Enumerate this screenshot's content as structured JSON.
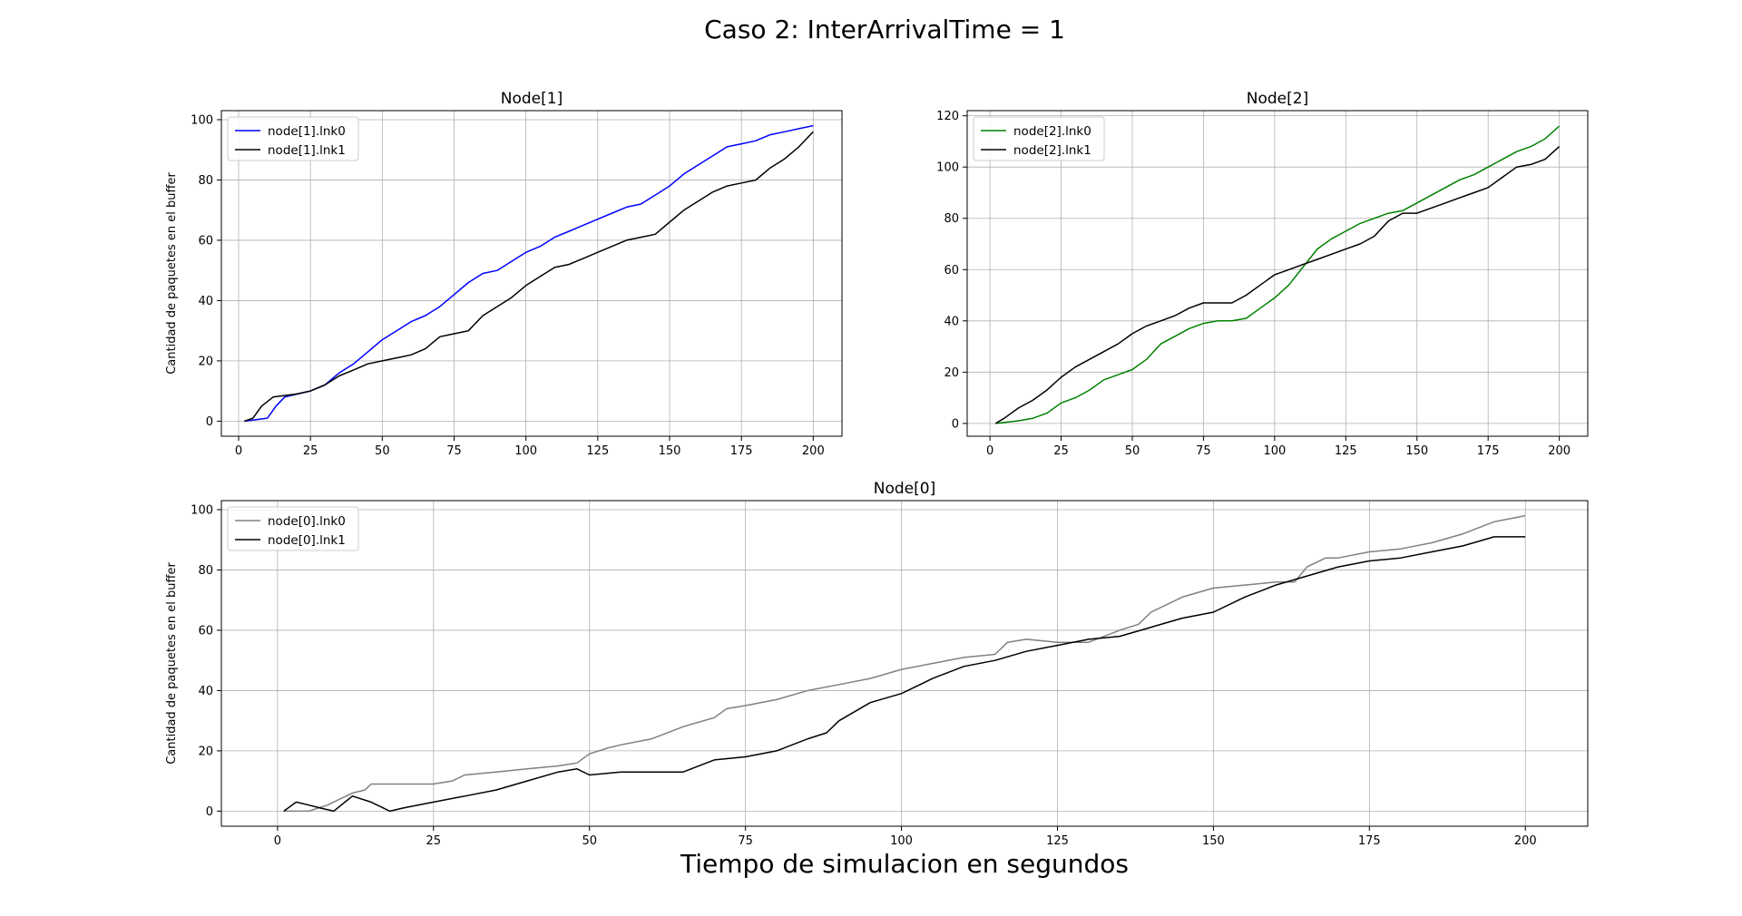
{
  "figure": {
    "suptitle": "Caso 2: InterArrivalTime = 1",
    "supxlabel": "Tiempo de simulacion en segundos"
  },
  "chart_data": [
    {
      "type": "line",
      "title": "Node[1]",
      "ylabel": "Cantidad de paquetes en el buffer",
      "xlim": [
        -6,
        210
      ],
      "ylim": [
        -5,
        103
      ],
      "xticks": [
        0,
        25,
        50,
        75,
        100,
        125,
        150,
        175,
        200
      ],
      "yticks": [
        0,
        20,
        40,
        60,
        80,
        100
      ],
      "grid": true,
      "legend": "upper-left",
      "series": [
        {
          "name": "node[1].lnk0",
          "color": "#0000ff",
          "points": [
            [
              2,
              0
            ],
            [
              10,
              1
            ],
            [
              13,
              5
            ],
            [
              16,
              8
            ],
            [
              25,
              10
            ],
            [
              30,
              12
            ],
            [
              35,
              16
            ],
            [
              40,
              19
            ],
            [
              45,
              23
            ],
            [
              50,
              27
            ],
            [
              55,
              30
            ],
            [
              60,
              33
            ],
            [
              65,
              35
            ],
            [
              70,
              38
            ],
            [
              75,
              42
            ],
            [
              80,
              46
            ],
            [
              85,
              49
            ],
            [
              90,
              50
            ],
            [
              95,
              53
            ],
            [
              100,
              56
            ],
            [
              105,
              58
            ],
            [
              110,
              61
            ],
            [
              115,
              63
            ],
            [
              120,
              65
            ],
            [
              125,
              67
            ],
            [
              130,
              69
            ],
            [
              135,
              71
            ],
            [
              140,
              72
            ],
            [
              145,
              75
            ],
            [
              150,
              78
            ],
            [
              155,
              82
            ],
            [
              160,
              85
            ],
            [
              165,
              88
            ],
            [
              170,
              91
            ],
            [
              175,
              92
            ],
            [
              180,
              93
            ],
            [
              185,
              95
            ],
            [
              190,
              96
            ],
            [
              195,
              97
            ],
            [
              200,
              98
            ]
          ]
        },
        {
          "name": "node[1].lnk1",
          "color": "#000000",
          "points": [
            [
              2,
              0
            ],
            [
              5,
              1
            ],
            [
              8,
              5
            ],
            [
              12,
              8
            ],
            [
              20,
              9
            ],
            [
              25,
              10
            ],
            [
              30,
              12
            ],
            [
              35,
              15
            ],
            [
              40,
              17
            ],
            [
              45,
              19
            ],
            [
              50,
              20
            ],
            [
              55,
              21
            ],
            [
              60,
              22
            ],
            [
              65,
              24
            ],
            [
              70,
              28
            ],
            [
              75,
              29
            ],
            [
              80,
              30
            ],
            [
              85,
              35
            ],
            [
              90,
              38
            ],
            [
              95,
              41
            ],
            [
              100,
              45
            ],
            [
              105,
              48
            ],
            [
              110,
              51
            ],
            [
              115,
              52
            ],
            [
              120,
              54
            ],
            [
              125,
              56
            ],
            [
              130,
              58
            ],
            [
              135,
              60
            ],
            [
              140,
              61
            ],
            [
              145,
              62
            ],
            [
              150,
              66
            ],
            [
              155,
              70
            ],
            [
              160,
              73
            ],
            [
              165,
              76
            ],
            [
              170,
              78
            ],
            [
              175,
              79
            ],
            [
              180,
              80
            ],
            [
              185,
              84
            ],
            [
              190,
              87
            ],
            [
              195,
              91
            ],
            [
              200,
              96
            ]
          ]
        }
      ]
    },
    {
      "type": "line",
      "title": "Node[2]",
      "ylabel": "",
      "xlim": [
        -8,
        210
      ],
      "ylim": [
        -5,
        122
      ],
      "xticks": [
        0,
        25,
        50,
        75,
        100,
        125,
        150,
        175,
        200
      ],
      "yticks": [
        0,
        20,
        40,
        60,
        80,
        100,
        120
      ],
      "grid": true,
      "legend": "upper-left",
      "series": [
        {
          "name": "node[2].lnk0",
          "color": "#008000",
          "points": [
            [
              2,
              0
            ],
            [
              10,
              1
            ],
            [
              15,
              2
            ],
            [
              20,
              4
            ],
            [
              25,
              8
            ],
            [
              30,
              10
            ],
            [
              35,
              13
            ],
            [
              40,
              17
            ],
            [
              45,
              19
            ],
            [
              50,
              21
            ],
            [
              55,
              25
            ],
            [
              60,
              31
            ],
            [
              65,
              34
            ],
            [
              70,
              37
            ],
            [
              75,
              39
            ],
            [
              80,
              40
            ],
            [
              85,
              40
            ],
            [
              90,
              41
            ],
            [
              95,
              45
            ],
            [
              100,
              49
            ],
            [
              105,
              54
            ],
            [
              110,
              61
            ],
            [
              115,
              68
            ],
            [
              120,
              72
            ],
            [
              125,
              75
            ],
            [
              130,
              78
            ],
            [
              135,
              80
            ],
            [
              140,
              82
            ],
            [
              145,
              83
            ],
            [
              150,
              86
            ],
            [
              155,
              89
            ],
            [
              160,
              92
            ],
            [
              165,
              95
            ],
            [
              170,
              97
            ],
            [
              175,
              100
            ],
            [
              180,
              103
            ],
            [
              185,
              106
            ],
            [
              190,
              108
            ],
            [
              195,
              111
            ],
            [
              200,
              116
            ]
          ]
        },
        {
          "name": "node[2].lnk1",
          "color": "#000000",
          "points": [
            [
              2,
              0
            ],
            [
              5,
              2
            ],
            [
              10,
              6
            ],
            [
              15,
              9
            ],
            [
              20,
              13
            ],
            [
              25,
              18
            ],
            [
              30,
              22
            ],
            [
              35,
              25
            ],
            [
              40,
              28
            ],
            [
              45,
              31
            ],
            [
              50,
              35
            ],
            [
              55,
              38
            ],
            [
              60,
              40
            ],
            [
              65,
              42
            ],
            [
              70,
              45
            ],
            [
              75,
              47
            ],
            [
              80,
              47
            ],
            [
              85,
              47
            ],
            [
              90,
              50
            ],
            [
              95,
              54
            ],
            [
              100,
              58
            ],
            [
              105,
              60
            ],
            [
              110,
              62
            ],
            [
              115,
              64
            ],
            [
              120,
              66
            ],
            [
              125,
              68
            ],
            [
              130,
              70
            ],
            [
              135,
              73
            ],
            [
              140,
              79
            ],
            [
              145,
              82
            ],
            [
              150,
              82
            ],
            [
              155,
              84
            ],
            [
              160,
              86
            ],
            [
              165,
              88
            ],
            [
              170,
              90
            ],
            [
              175,
              92
            ],
            [
              180,
              96
            ],
            [
              185,
              100
            ],
            [
              190,
              101
            ],
            [
              195,
              103
            ],
            [
              200,
              108
            ]
          ]
        }
      ]
    },
    {
      "type": "line",
      "title": "Node[0]",
      "ylabel": "Cantidad de paquetes en el buffer",
      "xlim": [
        -9,
        210
      ],
      "ylim": [
        -5,
        103
      ],
      "xticks": [
        0,
        25,
        50,
        75,
        100,
        125,
        150,
        175,
        200
      ],
      "yticks": [
        0,
        20,
        40,
        60,
        80,
        100
      ],
      "grid": true,
      "legend": "upper-left",
      "series": [
        {
          "name": "node[0].lnk0",
          "color": "#808080",
          "points": [
            [
              1,
              0
            ],
            [
              5,
              0
            ],
            [
              8,
              2
            ],
            [
              10,
              4
            ],
            [
              12,
              6
            ],
            [
              14,
              7
            ],
            [
              15,
              9
            ],
            [
              20,
              9
            ],
            [
              25,
              9
            ],
            [
              28,
              10
            ],
            [
              30,
              12
            ],
            [
              35,
              13
            ],
            [
              40,
              14
            ],
            [
              45,
              15
            ],
            [
              48,
              16
            ],
            [
              50,
              19
            ],
            [
              53,
              21
            ],
            [
              55,
              22
            ],
            [
              60,
              24
            ],
            [
              65,
              28
            ],
            [
              70,
              31
            ],
            [
              72,
              34
            ],
            [
              75,
              35
            ],
            [
              80,
              37
            ],
            [
              85,
              40
            ],
            [
              90,
              42
            ],
            [
              95,
              44
            ],
            [
              100,
              47
            ],
            [
              105,
              49
            ],
            [
              110,
              51
            ],
            [
              115,
              52
            ],
            [
              117,
              56
            ],
            [
              120,
              57
            ],
            [
              125,
              56
            ],
            [
              130,
              56
            ],
            [
              135,
              60
            ],
            [
              138,
              62
            ],
            [
              140,
              66
            ],
            [
              145,
              71
            ],
            [
              150,
              74
            ],
            [
              155,
              75
            ],
            [
              160,
              76
            ],
            [
              163,
              76
            ],
            [
              165,
              81
            ],
            [
              168,
              84
            ],
            [
              170,
              84
            ],
            [
              175,
              86
            ],
            [
              180,
              87
            ],
            [
              185,
              89
            ],
            [
              190,
              92
            ],
            [
              195,
              96
            ],
            [
              200,
              98
            ]
          ]
        },
        {
          "name": "node[0].lnk1",
          "color": "#000000",
          "points": [
            [
              1,
              0
            ],
            [
              3,
              3
            ],
            [
              5,
              2
            ],
            [
              7,
              1
            ],
            [
              9,
              0
            ],
            [
              12,
              5
            ],
            [
              15,
              3
            ],
            [
              18,
              0
            ],
            [
              20,
              1
            ],
            [
              25,
              3
            ],
            [
              30,
              5
            ],
            [
              35,
              7
            ],
            [
              40,
              10
            ],
            [
              45,
              13
            ],
            [
              48,
              14
            ],
            [
              50,
              12
            ],
            [
              55,
              13
            ],
            [
              60,
              13
            ],
            [
              65,
              13
            ],
            [
              70,
              17
            ],
            [
              75,
              18
            ],
            [
              80,
              20
            ],
            [
              85,
              24
            ],
            [
              88,
              26
            ],
            [
              90,
              30
            ],
            [
              95,
              36
            ],
            [
              100,
              39
            ],
            [
              105,
              44
            ],
            [
              110,
              48
            ],
            [
              115,
              50
            ],
            [
              120,
              53
            ],
            [
              125,
              55
            ],
            [
              130,
              57
            ],
            [
              135,
              58
            ],
            [
              140,
              61
            ],
            [
              145,
              64
            ],
            [
              150,
              66
            ],
            [
              155,
              71
            ],
            [
              160,
              75
            ],
            [
              165,
              78
            ],
            [
              170,
              81
            ],
            [
              175,
              83
            ],
            [
              180,
              84
            ],
            [
              185,
              86
            ],
            [
              190,
              88
            ],
            [
              195,
              91
            ],
            [
              200,
              91
            ]
          ]
        }
      ]
    }
  ]
}
